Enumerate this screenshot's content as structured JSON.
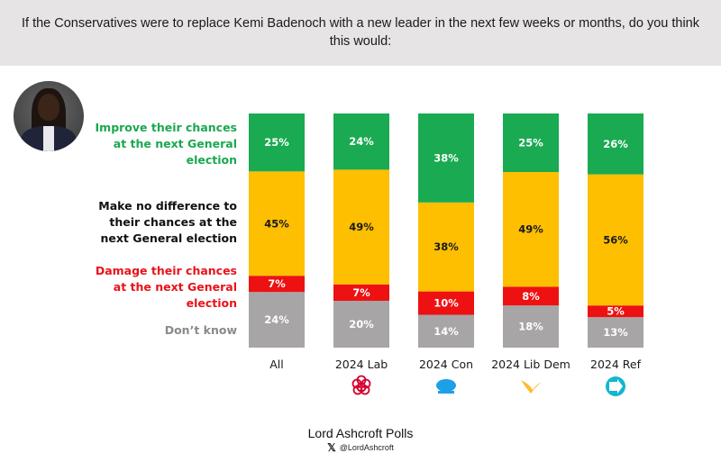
{
  "header": {
    "question": "If the Conservatives were to replace Kemi Badenoch with a new leader in the next few weeks or months, do you think this would:"
  },
  "portrait": {
    "alt": "Kemi Badenoch portrait"
  },
  "legend": [
    {
      "key": "improve",
      "label": "Improve their chances at the next General election",
      "color": "#1aa84f"
    },
    {
      "key": "no_difference",
      "label": "Make no difference to their chances at the next General election",
      "color": "#111111"
    },
    {
      "key": "damage",
      "label": "Damage their chances at the next General election",
      "color": "#e8131a"
    },
    {
      "key": "dont_know",
      "label": "Don’t know",
      "color": "#8a8a8a"
    }
  ],
  "chart_data": {
    "type": "bar",
    "stacked": true,
    "orientation": "vertical",
    "title": "If the Conservatives were to replace Kemi Badenoch with a new leader in the next few weeks or months, do you think this would:",
    "xlabel": "",
    "ylabel": "",
    "ylim": [
      0,
      101
    ],
    "grid": false,
    "categories": [
      "All",
      "2024 Lab",
      "2024 Con",
      "2024 Lib Dem",
      "2024 Ref"
    ],
    "category_icons": [
      "",
      "labour-rose-icon",
      "conservative-tree-icon",
      "libdem-bird-icon",
      "reform-uk-arrow-icon"
    ],
    "series": [
      {
        "name": "Don’t know",
        "color": "#a7a5a6",
        "label_color": "#ffffff",
        "values": [
          24,
          20,
          14,
          18,
          13
        ]
      },
      {
        "name": "Damage their chances at the next General election",
        "color": "#ee1111",
        "label_color": "#ffffff",
        "values": [
          7,
          7,
          10,
          8,
          5
        ]
      },
      {
        "name": "Make no difference to their chances at the next General election",
        "color": "#fdbf00",
        "label_color": "#1a1a1a",
        "values": [
          45,
          49,
          38,
          49,
          56
        ]
      },
      {
        "name": "Improve their chances at the next General election",
        "color": "#1aaa52",
        "label_color": "#ffffff",
        "values": [
          25,
          24,
          38,
          25,
          26
        ]
      }
    ],
    "value_suffix": "%"
  },
  "footer": {
    "title": "Lord Ashcroft Polls",
    "handle": "@LordAshcroft",
    "handle_icon": "x-logo-icon"
  }
}
